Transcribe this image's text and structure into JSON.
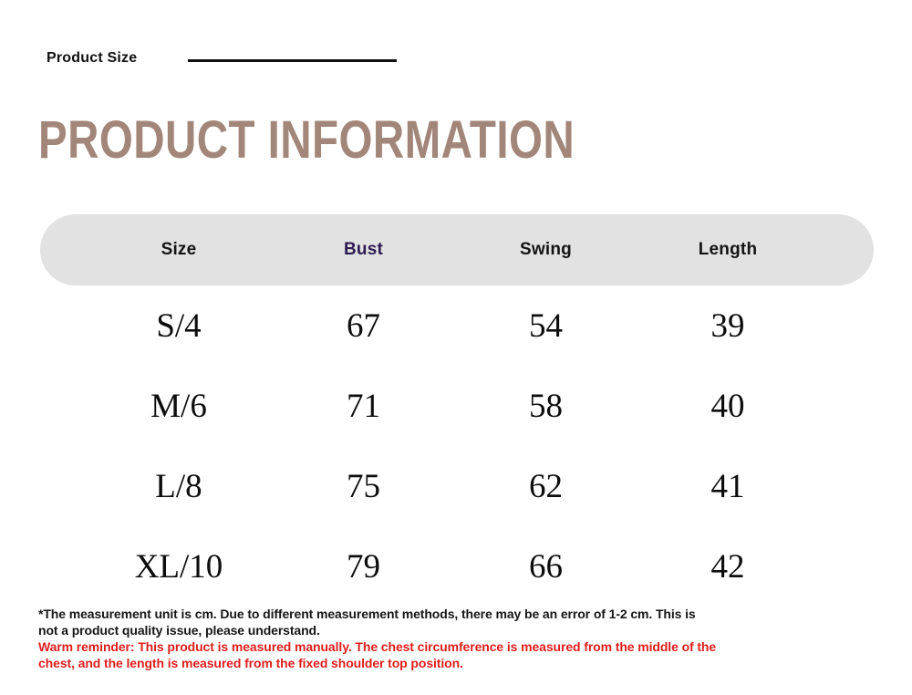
{
  "header": {
    "label": "Product Size",
    "title": "PRODUCT INFORMATION"
  },
  "size_table": {
    "columns": [
      "Size",
      "Bust",
      "Swing",
      "Length"
    ],
    "rows": [
      {
        "size": "S/4",
        "bust": "67",
        "swing": "54",
        "length": "39"
      },
      {
        "size": "M/6",
        "bust": "71",
        "swing": "58",
        "length": "40"
      },
      {
        "size": "L/8",
        "bust": "75",
        "swing": "62",
        "length": "41"
      },
      {
        "size": "XL/10",
        "bust": "79",
        "swing": "66",
        "length": "42"
      }
    ]
  },
  "notes": {
    "measurement_lines": [
      "*The measurement unit is cm. Due to different measurement methods, there may be an error of 1-2 cm. This is",
      "not a product quality issue, please understand."
    ],
    "warm_reminder_lines": [
      "Warm reminder: This product is measured manually. The chest circumference is measured from the middle of the",
      "chest, and the length is measured from the fixed shoulder top position."
    ]
  },
  "colors": {
    "title": "#a28679",
    "table_header_bg": "#e2e2e2",
    "bust_header_text": "#2e1a52",
    "warning_text": "#e01d1d"
  }
}
